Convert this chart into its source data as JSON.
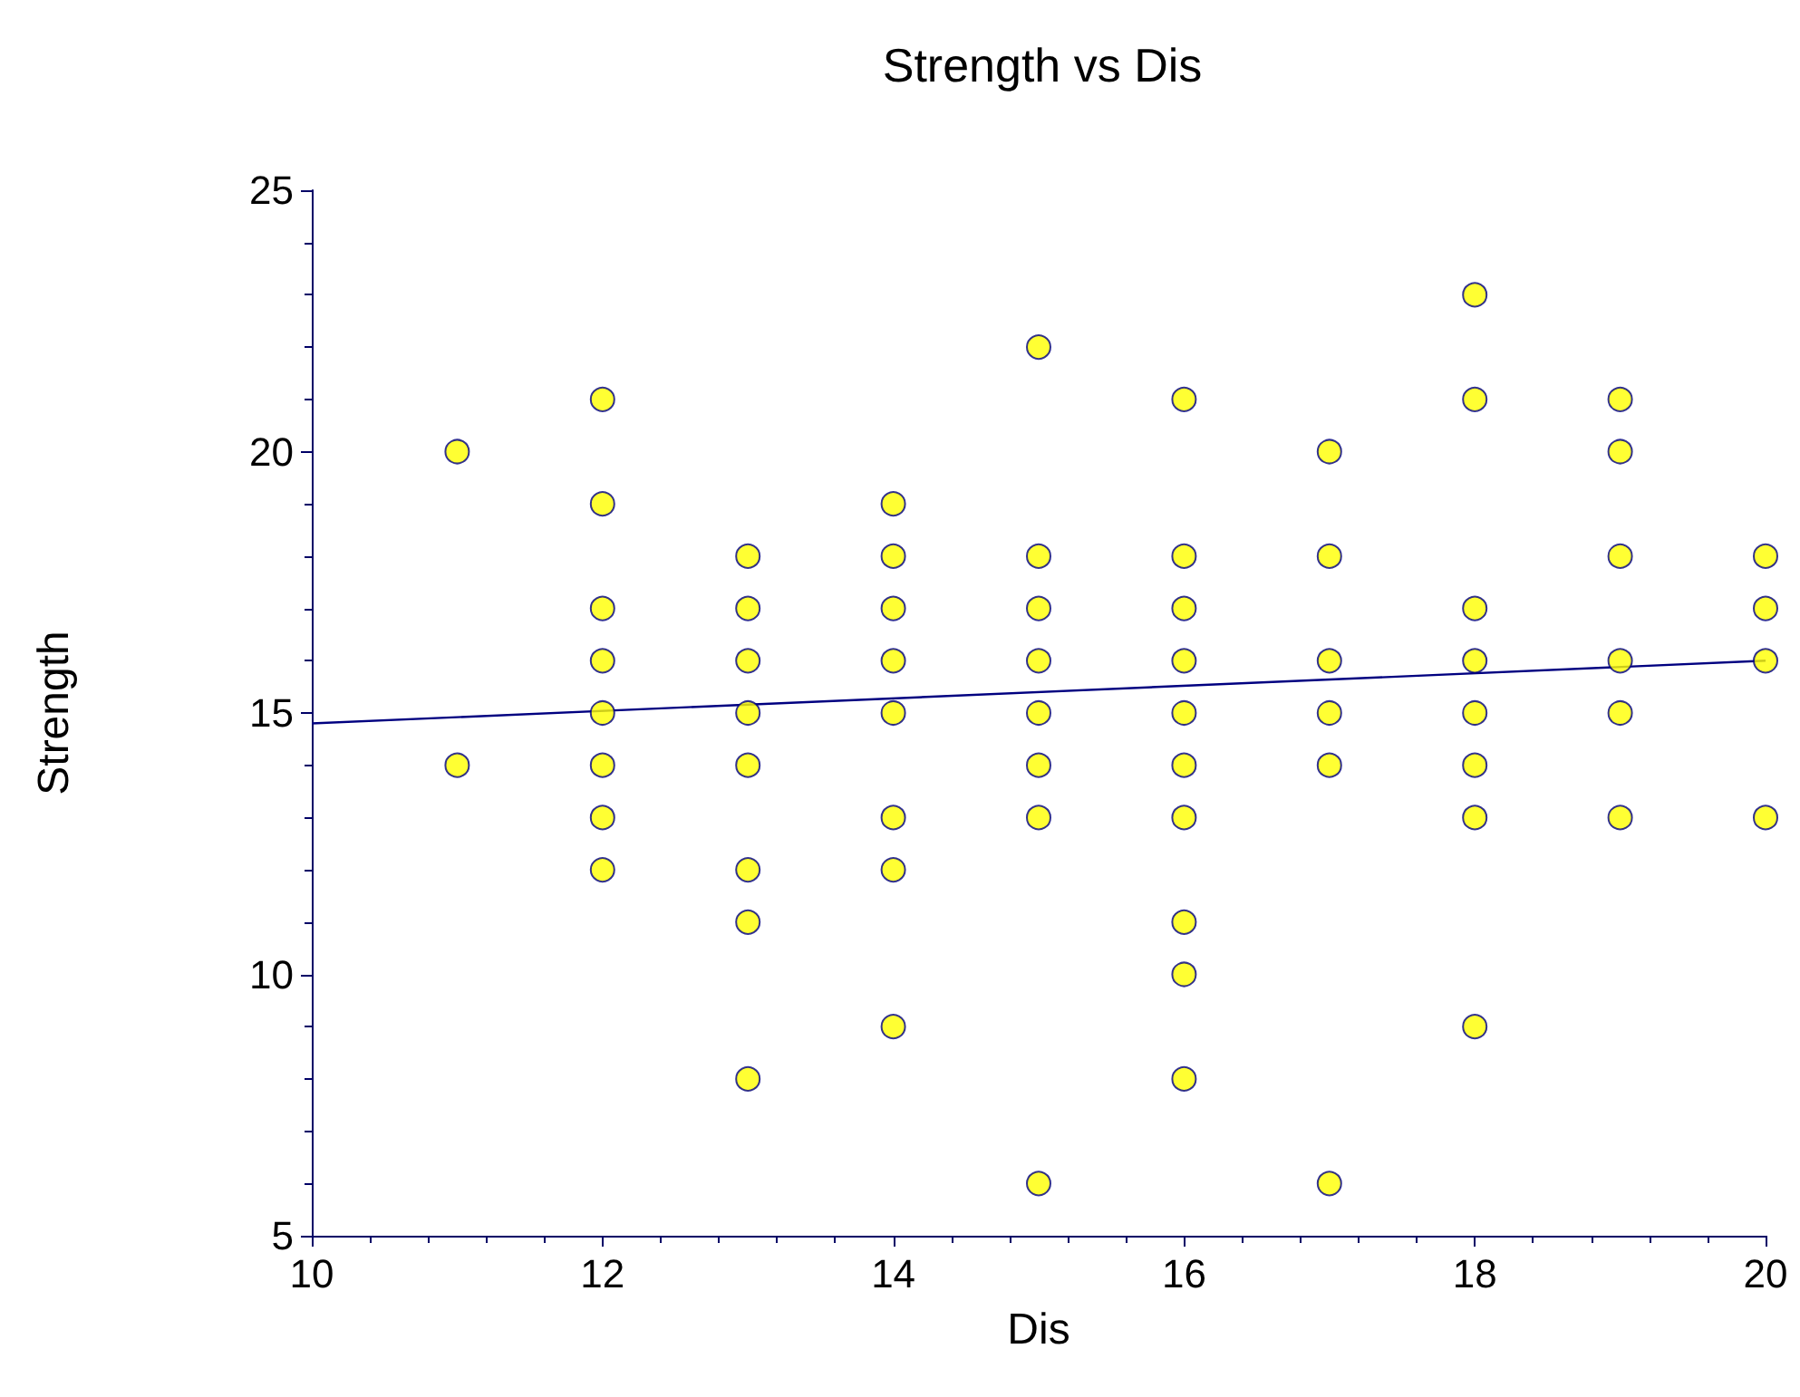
{
  "chart_data": {
    "type": "scatter",
    "title": "Strength vs Dis",
    "xlabel": "Dis",
    "ylabel": "Strength",
    "xlim": [
      10,
      20
    ],
    "xticks": [
      10,
      12,
      14,
      16,
      18,
      20
    ],
    "ylim": [
      5,
      25
    ],
    "yticks": [
      5,
      10,
      15,
      20,
      25
    ],
    "series": [
      {
        "marker": "circle",
        "color": "#ffff00",
        "x": [
          11,
          11,
          12,
          12,
          12,
          12,
          12,
          12,
          12,
          12,
          13,
          13,
          13,
          13,
          13,
          13,
          13,
          13,
          14,
          14,
          14,
          14,
          14,
          14,
          14,
          14,
          15,
          15,
          15,
          15,
          15,
          15,
          15,
          15,
          16,
          16,
          16,
          16,
          16,
          16,
          16,
          16,
          16,
          16,
          17,
          17,
          17,
          17,
          17,
          17,
          18,
          18,
          18,
          18,
          18,
          18,
          18,
          18,
          19,
          19,
          19,
          19,
          19,
          19,
          20,
          20,
          20,
          20
        ],
        "values": [
          20,
          14,
          21,
          19,
          17,
          16,
          15,
          14,
          13,
          12,
          18,
          17,
          16,
          15,
          14,
          12,
          11,
          8,
          19,
          18,
          17,
          16,
          15,
          13,
          12,
          9,
          22,
          18,
          17,
          16,
          15,
          14,
          13,
          6,
          21,
          18,
          17,
          16,
          15,
          14,
          13,
          11,
          10,
          8,
          20,
          18,
          16,
          15,
          14,
          6,
          23,
          21,
          17,
          16,
          15,
          14,
          13,
          9,
          21,
          20,
          18,
          16,
          15,
          13,
          18,
          17,
          16,
          13
        ]
      },
      {
        "type": "line",
        "color": "#000080",
        "x": [
          10,
          20
        ],
        "values": [
          14.8,
          16.0
        ]
      }
    ]
  }
}
